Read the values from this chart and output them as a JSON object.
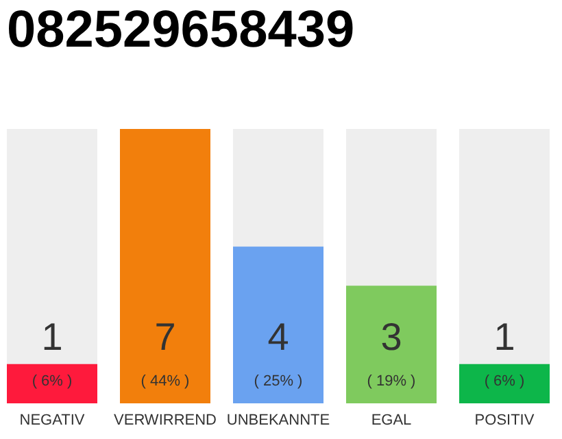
{
  "chart_data": {
    "type": "bar",
    "title": "082529658439",
    "categories": [
      "NEGATIV",
      "VERWIRREND",
      "UNBEKANNTE",
      "EGAL",
      "POSITIV"
    ],
    "values": [
      1,
      7,
      4,
      3,
      1
    ],
    "colors": [
      "#fe1a3c",
      "#f27f0c",
      "#6aa2f0",
      "#7fca5e",
      "#0db64a"
    ],
    "ylim": [
      0,
      7
    ],
    "data_labels": true,
    "tick_labels": "x",
    "annotations": [
      "( 6% )",
      "( 44% )",
      "( 25% )",
      "( 19% )",
      "( 6% )"
    ]
  }
}
